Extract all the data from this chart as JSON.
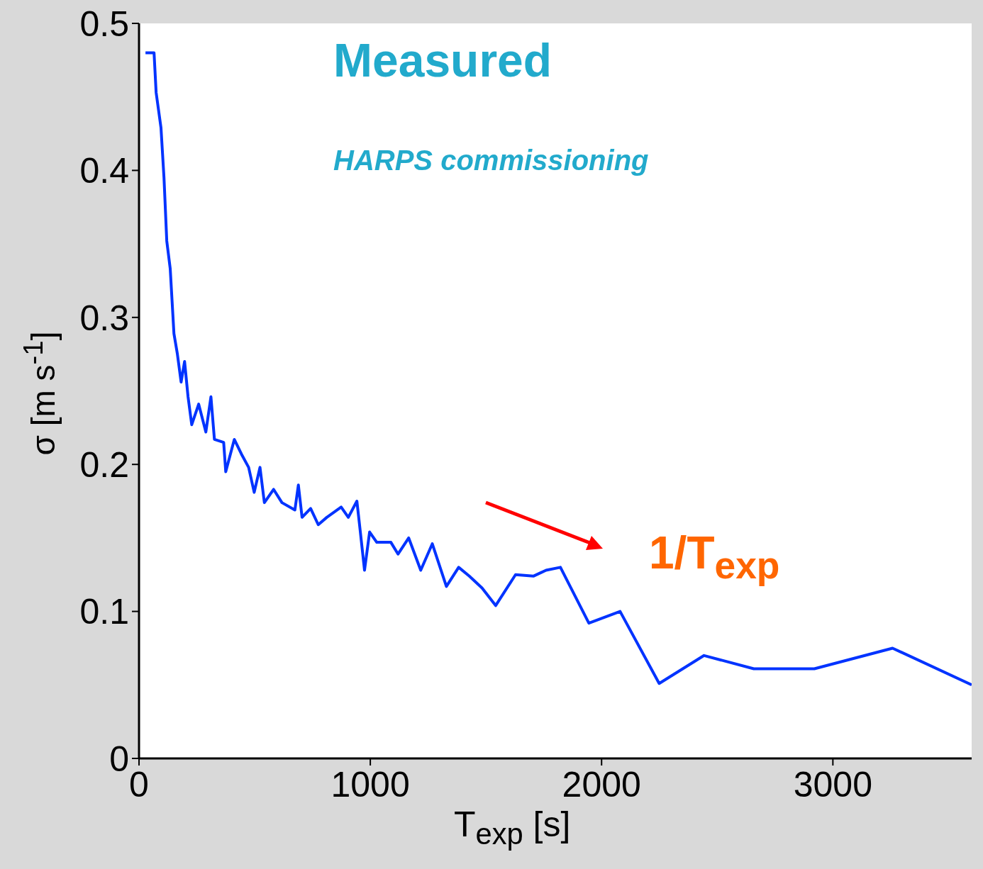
{
  "chart_data": {
    "type": "line",
    "title": "Measured",
    "subtitle": "HARPS commissioning",
    "xlabel": "T$_{exp}$ [s]",
    "ylabel": "σ [m s$^{-1}$]",
    "annotations": [
      "1/T$_{exp}$"
    ],
    "x": [
      28,
      65,
      74,
      95,
      108,
      120,
      135,
      151,
      166,
      182,
      197,
      212,
      228,
      258,
      289,
      311,
      326,
      366,
      375,
      412,
      443,
      474,
      498,
      523,
      542,
      582,
      618,
      674,
      689,
      705,
      742,
      775,
      812,
      874,
      905,
      942,
      957,
      975,
      997,
      1028,
      1089,
      1120,
      1166,
      1218,
      1268,
      1329,
      1382,
      1428,
      1483,
      1542,
      1628,
      1705,
      1760,
      1822,
      1945,
      2080,
      2249,
      2443,
      2658,
      2920,
      3258,
      3600
    ],
    "series": [
      {
        "color": "#0033ff",
        "values": [
          0.48,
          0.48,
          0.453,
          0.429,
          0.395,
          0.352,
          0.333,
          0.289,
          0.275,
          0.256,
          0.27,
          0.246,
          0.227,
          0.241,
          0.222,
          0.246,
          0.217,
          0.215,
          0.195,
          0.217,
          0.207,
          0.198,
          0.181,
          0.198,
          0.174,
          0.183,
          0.174,
          0.169,
          0.186,
          0.164,
          0.17,
          0.159,
          0.164,
          0.171,
          0.164,
          0.175,
          0.154,
          0.128,
          0.154,
          0.147,
          0.147,
          0.139,
          0.15,
          0.128,
          0.146,
          0.117,
          0.13,
          0.124,
          0.116,
          0.104,
          0.125,
          0.124,
          0.128,
          0.13,
          0.092,
          0.1,
          0.051,
          0.07,
          0.061,
          0.061,
          0.075,
          0.05
        ]
      }
    ],
    "xlim": [
      0,
      3600
    ],
    "xticks": [
      0,
      1000,
      2000,
      3000
    ],
    "ylim": [
      0,
      0.5
    ],
    "yticks": [
      0,
      0.1,
      0.2,
      0.3,
      0.4,
      0.5
    ],
    "grid": false,
    "legend": false,
    "marker": "none",
    "line_style": "solid"
  }
}
